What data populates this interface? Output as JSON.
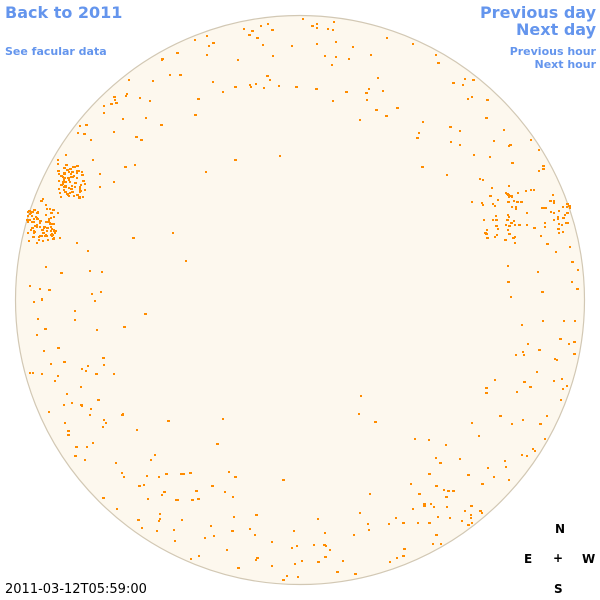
{
  "nav": {
    "back_label": "Back to 2011",
    "facular_label": "See facular data",
    "prev_day_label": "Previous day",
    "next_day_label": "Next day",
    "prev_hour_label": "Previous hour",
    "next_hour_label": "Next hour"
  },
  "compass": {
    "north": "N",
    "south": "S",
    "east": "E",
    "west": "W",
    "center": "+"
  },
  "timestamp": "2011-03-12T05:59:00",
  "colors": {
    "link": "#6495ed",
    "disk_fill": "#fdf8ee",
    "disk_edge": "#d2c8b4",
    "feature": "#ff8c00"
  }
}
